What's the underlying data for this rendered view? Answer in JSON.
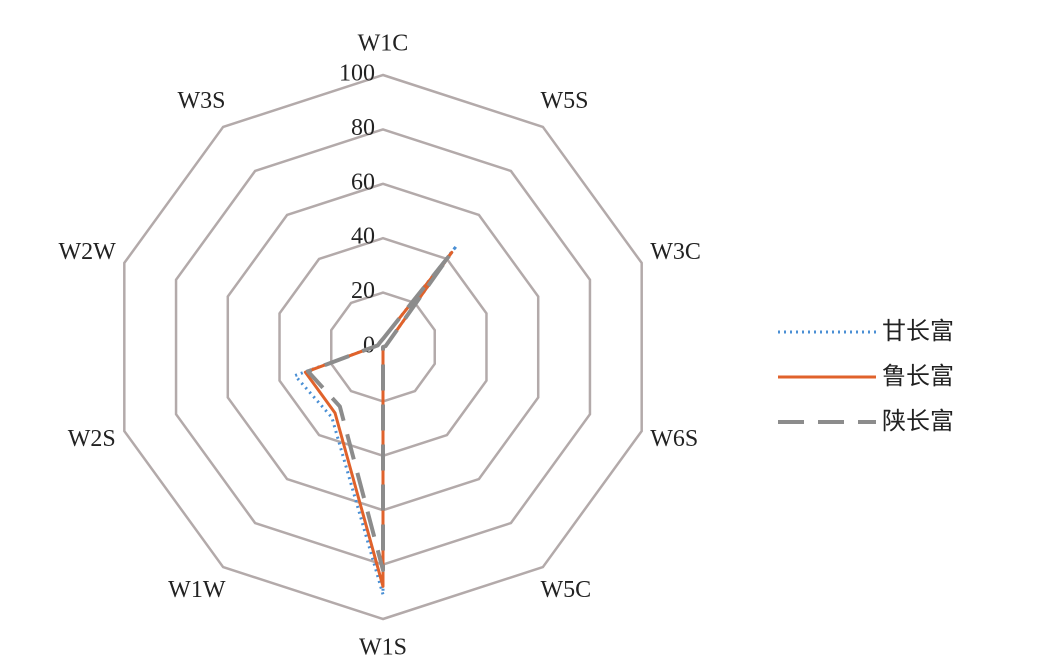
{
  "chart_data": {
    "type": "radar",
    "categories": [
      "W1C",
      "W5S",
      "W3C",
      "W6S",
      "W5C",
      "W1S",
      "W1W",
      "W2S",
      "W2W",
      "W3S"
    ],
    "series": [
      {
        "name": "甘长富",
        "color": "#4a8fd4",
        "dash": "dotted",
        "values": [
          3,
          46,
          1,
          0,
          0,
          91,
          32,
          34,
          2,
          2
        ]
      },
      {
        "name": "鲁长富",
        "color": "#e0622b",
        "dash": "solid",
        "values": [
          3,
          43,
          1,
          0,
          0,
          88,
          30,
          30,
          2,
          2
        ]
      },
      {
        "name": "陕长富",
        "color": "#8c8c8c",
        "dash": "dashed",
        "values": [
          3,
          42,
          1,
          0,
          0,
          82,
          27,
          29,
          2,
          2
        ]
      }
    ],
    "ylim": [
      0,
      100
    ],
    "yticks": [
      0,
      20,
      40,
      60,
      80,
      100
    ],
    "grid": true,
    "legend": "right"
  }
}
